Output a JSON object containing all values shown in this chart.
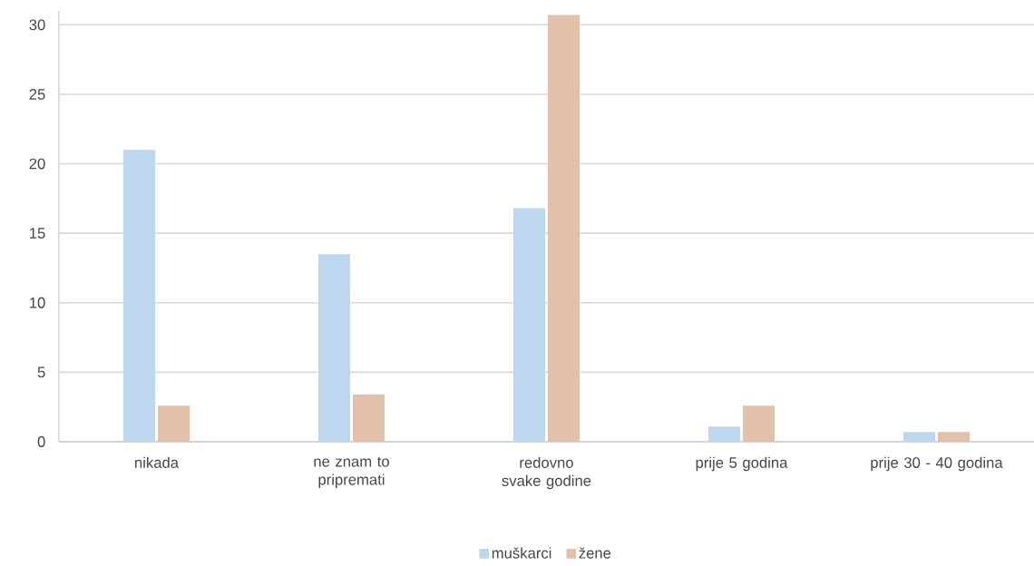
{
  "chart_data": {
    "type": "bar",
    "categories": [
      "nikada",
      "ne znam to pripremati",
      "redovno svake godine",
      "prije 5 godina",
      "prije 30 - 40 godina"
    ],
    "series": [
      {
        "name": "muškarci",
        "color": "#bdd7ee",
        "values": [
          21.0,
          13.5,
          16.8,
          1.1,
          0.7
        ]
      },
      {
        "name": "žene",
        "color": "#e2c0aa",
        "values": [
          2.6,
          3.4,
          30.7,
          2.6,
          0.7
        ]
      }
    ],
    "ylim": [
      0,
      31
    ],
    "yticks": [
      0,
      5,
      10,
      15,
      20,
      25,
      30
    ],
    "grid": "y",
    "legend": "bottom"
  }
}
